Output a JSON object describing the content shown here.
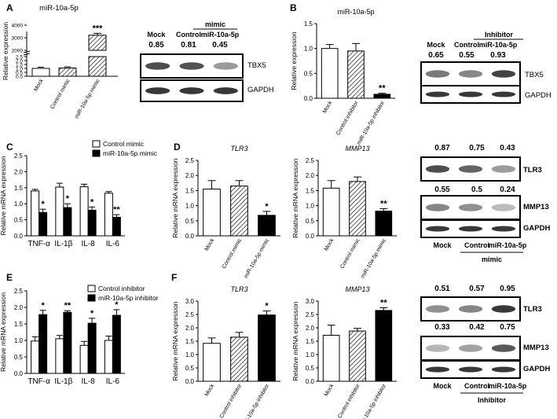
{
  "panels": {
    "A": {
      "letter": "A",
      "title": "miR-10a-5p",
      "ylabel": "Relative expression",
      "categories": [
        "Mock",
        "Control mimic",
        "miR-10a-5p mimic"
      ],
      "values": [
        1.0,
        1.05,
        3200
      ],
      "errors": [
        0.05,
        0.05,
        150
      ],
      "sig": [
        "",
        "",
        "***"
      ],
      "yticks_low": [
        "0.0",
        "0.5",
        "1.0",
        "1.5",
        "2.0",
        "2.5"
      ],
      "yticks_high": [
        "2000",
        "3000",
        "4000"
      ],
      "wb": {
        "group": "mimic",
        "lanes": [
          "Mock",
          "Control",
          "miR-10a-5p"
        ],
        "values": [
          "0.85",
          "0.81",
          "0.45"
        ],
        "bands": [
          "TBX5",
          "GAPDH"
        ]
      }
    },
    "B": {
      "letter": "B",
      "title": "miR-10a-5p",
      "ylabel": "Relative expression",
      "categories": [
        "Mock",
        "Control inhibitor",
        "miR-10a-5p inhibitor"
      ],
      "values": [
        1.0,
        0.95,
        0.08
      ],
      "errors": [
        0.08,
        0.15,
        0.02
      ],
      "sig": [
        "",
        "",
        "**"
      ],
      "yticks": [
        "0.0",
        "0.5",
        "1.0",
        "1.5"
      ],
      "wb": {
        "group": "Inhibitor",
        "lanes": [
          "Mock",
          "Control",
          "miR-10a-5p"
        ],
        "values": [
          "0.65",
          "0.55",
          "0.93"
        ],
        "bands": [
          "TBX5",
          "GAPDH"
        ]
      }
    },
    "C": {
      "letter": "C",
      "ylabel": "Relative mRNA expression",
      "legend": [
        "Control mimic",
        "miR-10a-5p mimic"
      ],
      "categories": [
        "TNF-α",
        "IL-1β",
        "IL-8",
        "IL-6"
      ],
      "series": [
        {
          "name": "Control mimic",
          "values": [
            1.4,
            1.52,
            1.53,
            1.33
          ],
          "errors": [
            0.05,
            0.12,
            0.08,
            0.05
          ]
        },
        {
          "name": "miR-10a-5p mimic",
          "values": [
            0.73,
            0.88,
            0.8,
            0.58
          ],
          "errors": [
            0.1,
            0.12,
            0.1,
            0.08
          ]
        }
      ],
      "sig": [
        "*",
        "*",
        "*",
        "**"
      ],
      "yticks": [
        "0.0",
        "0.5",
        "1.0",
        "1.5",
        "2.0",
        "2.5"
      ]
    },
    "D1": {
      "title": "TLR3",
      "ylabel": "Relative mRNA expression",
      "categories": [
        "Mock",
        "Control mimic",
        "miR-10a-5p mimic"
      ],
      "values": [
        1.55,
        1.65,
        0.68
      ],
      "errors": [
        0.28,
        0.18,
        0.13
      ],
      "sig": [
        "",
        "",
        "*"
      ],
      "yticks": [
        "0.0",
        "0.5",
        "1.0",
        "1.5",
        "2.0",
        "2.5"
      ]
    },
    "D2": {
      "title": "MMP13",
      "ylabel": "Relative mRNA expression",
      "categories": [
        "Mock",
        "Control mimic",
        "miR-10a-5p mimic"
      ],
      "values": [
        1.58,
        1.8,
        0.82
      ],
      "errors": [
        0.25,
        0.15,
        0.08
      ],
      "sig": [
        "",
        "",
        "**"
      ],
      "yticks": [
        "0.0",
        "0.5",
        "1.0",
        "1.5",
        "2.0",
        "2.5"
      ]
    },
    "Dwb": {
      "letter": "D",
      "tlr3_values": [
        "0.87",
        "0.75",
        "0.43"
      ],
      "mmp13_values": [
        "0.55",
        "0.5",
        "0.24"
      ],
      "bands": [
        "TLR3",
        "MMP13",
        "GAPDH"
      ],
      "lanes": [
        "Mock",
        "Control",
        "miR-10a-5p"
      ],
      "group": "mimic"
    },
    "E": {
      "letter": "E",
      "ylabel": "Relative mRNA expression",
      "legend": [
        "Control inhibitor",
        "miR-10a-5p inhibitor"
      ],
      "categories": [
        "TNF-α",
        "IL-1β",
        "IL-8",
        "IL-6"
      ],
      "series": [
        {
          "name": "Control inhibitor",
          "values": [
            0.98,
            1.05,
            0.85,
            1.0
          ],
          "errors": [
            0.13,
            0.1,
            0.12,
            0.13
          ]
        },
        {
          "name": "miR-10a-5p inhibitor",
          "values": [
            1.78,
            1.85,
            1.52,
            1.76
          ],
          "errors": [
            0.13,
            0.05,
            0.15,
            0.17
          ]
        }
      ],
      "sig": [
        "*",
        "**",
        "*",
        "*"
      ],
      "yticks": [
        "0.0",
        "0.5",
        "1.0",
        "1.5",
        "2.0",
        "2.5"
      ]
    },
    "F1": {
      "letter": "F",
      "title": "TLR3",
      "ylabel": "Relative mRNA expression",
      "categories": [
        "Mock",
        "Control inhibitor",
        "miR-10a-5p inhibitor"
      ],
      "values": [
        1.42,
        1.65,
        2.48
      ],
      "errors": [
        0.2,
        0.18,
        0.15
      ],
      "sig": [
        "",
        "",
        "*"
      ],
      "yticks": [
        "0.0",
        "0.5",
        "1.0",
        "1.5",
        "2.0",
        "2.5",
        "3.0"
      ]
    },
    "F2": {
      "title": "MMP13",
      "ylabel": "Relative mRNA expression",
      "categories": [
        "Mock",
        "Control inhibitor",
        "miR-10a-5p inhibitor"
      ],
      "values": [
        1.72,
        1.88,
        2.65
      ],
      "errors": [
        0.38,
        0.1,
        0.1
      ],
      "sig": [
        "",
        "",
        "**"
      ],
      "yticks": [
        "0.0",
        "0.5",
        "1.0",
        "1.5",
        "2.0",
        "2.5",
        "3.0"
      ]
    },
    "Fwb": {
      "tlr3_values": [
        "0.51",
        "0.57",
        "0.95"
      ],
      "mmp13_values": [
        "0.33",
        "0.42",
        "0.75"
      ],
      "bands": [
        "TLR3",
        "MMP13",
        "GAPDH"
      ],
      "lanes": [
        "Mock",
        "Control",
        "miR-10a-5p"
      ],
      "group": "Inhibitor"
    }
  },
  "chart_data": [
    {
      "type": "bar",
      "title": "miR-10a-5p",
      "ylabel": "Relative expression",
      "categories": [
        "Mock",
        "Control mimic",
        "miR-10a-5p mimic"
      ],
      "values": [
        1.0,
        1.05,
        3200
      ]
    },
    {
      "type": "bar",
      "title": "miR-10a-5p",
      "ylabel": "Relative expression",
      "categories": [
        "Mock",
        "Control inhibitor",
        "miR-10a-5p inhibitor"
      ],
      "values": [
        1.0,
        0.95,
        0.08
      ],
      "ylim": [
        0,
        1.5
      ]
    },
    {
      "type": "bar",
      "ylabel": "Relative mRNA expression",
      "categories": [
        "TNF-α",
        "IL-1β",
        "IL-8",
        "IL-6"
      ],
      "series": [
        {
          "name": "Control mimic",
          "values": [
            1.4,
            1.52,
            1.53,
            1.33
          ]
        },
        {
          "name": "miR-10a-5p mimic",
          "values": [
            0.73,
            0.88,
            0.8,
            0.58
          ]
        }
      ],
      "ylim": [
        0,
        2.5
      ]
    },
    {
      "type": "bar",
      "title": "TLR3",
      "ylabel": "Relative mRNA expression",
      "categories": [
        "Mock",
        "Control mimic",
        "miR-10a-5p mimic"
      ],
      "values": [
        1.55,
        1.65,
        0.68
      ],
      "ylim": [
        0,
        2.5
      ]
    },
    {
      "type": "bar",
      "title": "MMP13",
      "ylabel": "Relative mRNA expression",
      "categories": [
        "Mock",
        "Control mimic",
        "miR-10a-5p mimic"
      ],
      "values": [
        1.58,
        1.8,
        0.82
      ],
      "ylim": [
        0,
        2.5
      ]
    },
    {
      "type": "bar",
      "ylabel": "Relative mRNA expression",
      "categories": [
        "TNF-α",
        "IL-1β",
        "IL-8",
        "IL-6"
      ],
      "series": [
        {
          "name": "Control inhibitor",
          "values": [
            0.98,
            1.05,
            0.85,
            1.0
          ]
        },
        {
          "name": "miR-10a-5p inhibitor",
          "values": [
            1.78,
            1.85,
            1.52,
            1.76
          ]
        }
      ],
      "ylim": [
        0,
        2.5
      ]
    },
    {
      "type": "bar",
      "title": "TLR3",
      "ylabel": "Relative mRNA expression",
      "categories": [
        "Mock",
        "Control inhibitor",
        "miR-10a-5p inhibitor"
      ],
      "values": [
        1.42,
        1.65,
        2.48
      ],
      "ylim": [
        0,
        3.0
      ]
    },
    {
      "type": "bar",
      "title": "MMP13",
      "ylabel": "Relative mRNA expression",
      "categories": [
        "Mock",
        "Control inhibitor",
        "miR-10a-5p inhibitor"
      ],
      "values": [
        1.72,
        1.88,
        2.65
      ],
      "ylim": [
        0,
        3.0
      ]
    }
  ]
}
